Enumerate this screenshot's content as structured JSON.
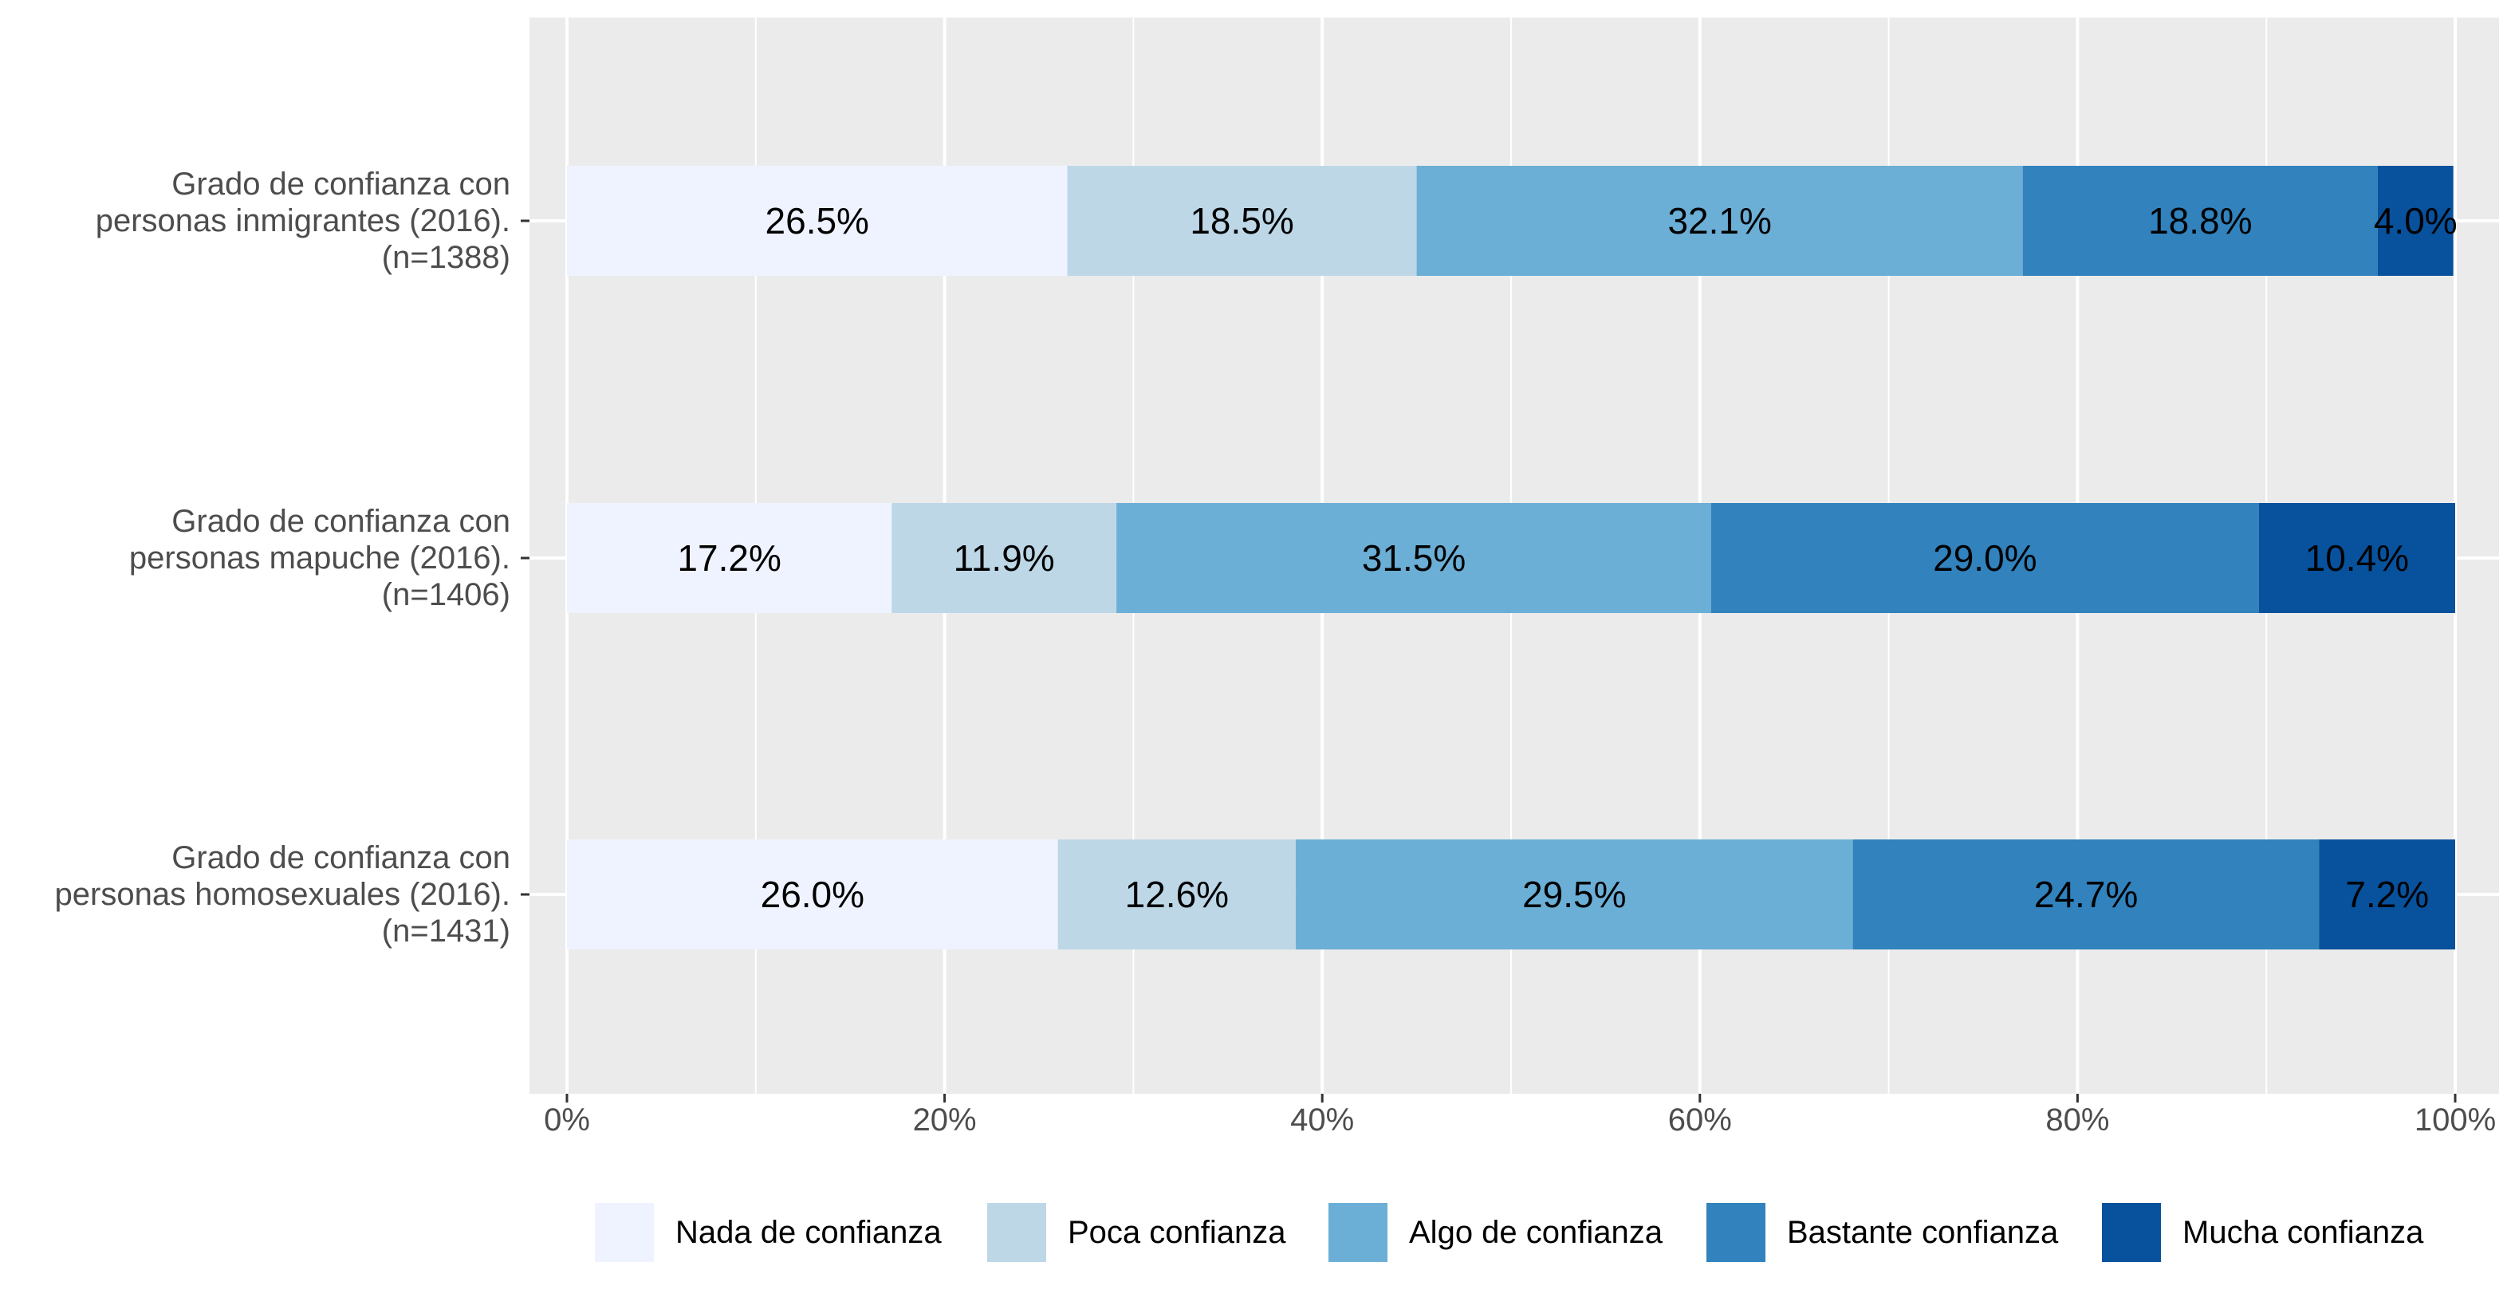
{
  "chart_data": {
    "type": "bar",
    "orientation": "horizontal",
    "stacked": true,
    "categories": [
      [
        "Grado de confianza con",
        "personas inmigrantes (2016).",
        "(n=1388)"
      ],
      [
        "Grado de confianza con",
        "personas mapuche (2016).",
        "(n=1406)"
      ],
      [
        "Grado de confianza con",
        "personas homosexuales (2016).",
        "(n=1431)"
      ]
    ],
    "series": [
      {
        "name": "Nada de confianza",
        "color": "#eff3ff",
        "values": [
          26.5,
          17.2,
          26.0
        ],
        "labels": [
          "26.5%",
          "17.2%",
          "26.0%"
        ]
      },
      {
        "name": "Poca confianza",
        "color": "#bdd7e7",
        "values": [
          18.5,
          11.9,
          12.6
        ],
        "labels": [
          "18.5%",
          "11.9%",
          "12.6%"
        ]
      },
      {
        "name": "Algo de confianza",
        "color": "#6baed6",
        "values": [
          32.1,
          31.5,
          29.5
        ],
        "labels": [
          "32.1%",
          "31.5%",
          "29.5%"
        ]
      },
      {
        "name": "Bastante confianza",
        "color": "#3182bd",
        "values": [
          18.8,
          29.0,
          24.7
        ],
        "labels": [
          "18.8%",
          "29.0%",
          "24.7%"
        ]
      },
      {
        "name": "Mucha confianza",
        "color": "#08519c",
        "values": [
          4.0,
          10.4,
          7.2
        ],
        "labels": [
          "4.0%",
          "10.4%",
          "7.2%"
        ]
      }
    ],
    "xlim": [
      0,
      100
    ],
    "xticks": [
      0,
      20,
      40,
      60,
      80,
      100
    ],
    "xtick_labels": [
      "0%",
      "20%",
      "40%",
      "60%",
      "80%",
      "100%"
    ],
    "grid": true,
    "legend_position": "bottom",
    "panel_color": "#ebebeb"
  }
}
